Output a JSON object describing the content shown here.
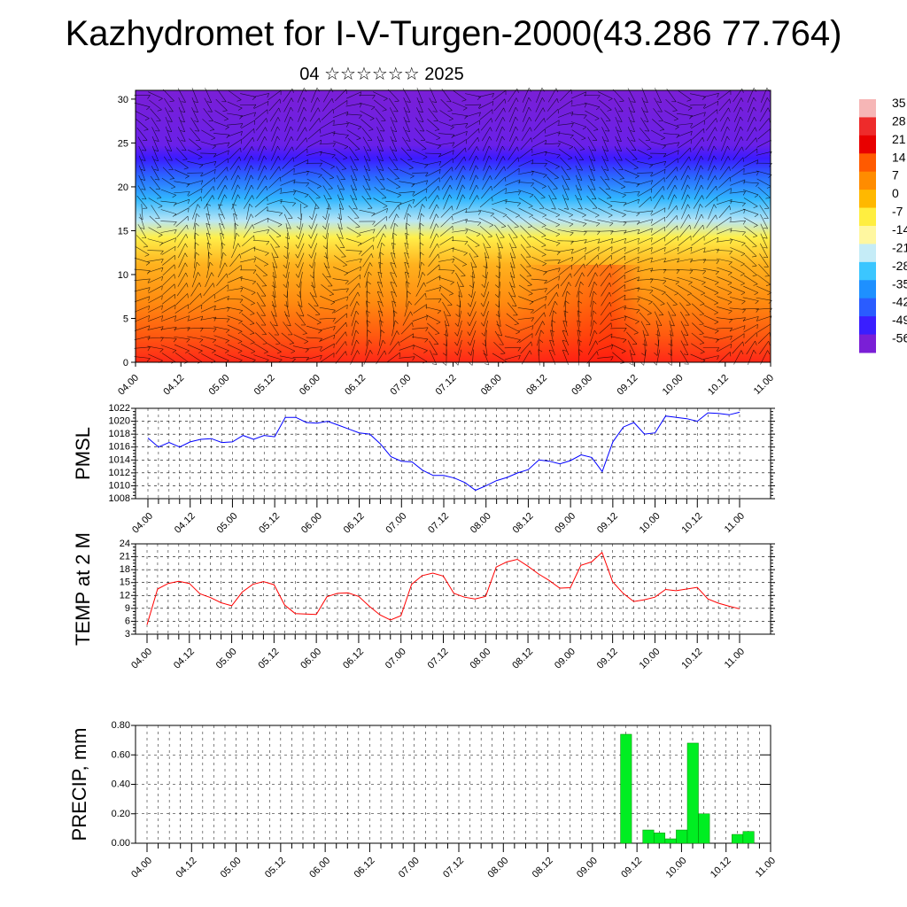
{
  "title": "Kazhydromet for I-V-Turgen-2000(43.286 77.764)",
  "subtitle": "04 ☆☆☆☆☆☆ 2025",
  "chart_data": [
    {
      "id": "profile",
      "type": "heatmap",
      "description_shown": "temperature cross-section with wind barbs",
      "y_ticks": [
        "0",
        "5",
        "10",
        "15",
        "20",
        "25",
        "30"
      ],
      "ylim": [
        0,
        31
      ],
      "x_ticks": [
        "04.00",
        "04.12",
        "05.00",
        "05.12",
        "06.00",
        "06.12",
        "07.00",
        "07.12",
        "08.00",
        "08.12",
        "09.00",
        "09.12",
        "10.00",
        "10.12",
        "11.00"
      ],
      "colorbar_ticks": [
        "35",
        "28",
        "21",
        "14",
        "7",
        "0",
        "-7",
        "-14",
        "-21",
        "-28",
        "-35",
        "-42",
        "-49",
        "-56"
      ],
      "colors": [
        "#7a1fd6",
        "#3b1bff",
        "#2a6bff",
        "#31b7ff",
        "#b9e6f5",
        "#fff04a",
        "#ffb21e",
        "#ff8a10",
        "#ff5a10",
        "#ff2818"
      ]
    },
    {
      "id": "pmsl",
      "type": "line",
      "ylabel": "PMSL",
      "ylim": [
        1008,
        1022
      ],
      "y_ticks": [
        "1008",
        "1010",
        "1012",
        "1014",
        "1016",
        "1018",
        "1020",
        "1022"
      ],
      "x_ticks": [
        "04.00",
        "04.12",
        "05.00",
        "05.12",
        "06.00",
        "06.12",
        "07.00",
        "07.12",
        "08.00",
        "08.12",
        "09.00",
        "09.12",
        "10.00",
        "10.12",
        "11.00"
      ],
      "color": "#0000ff",
      "values": [
        1017.4,
        1016.0,
        1016.7,
        1016.0,
        1016.8,
        1017.2,
        1017.3,
        1016.7,
        1016.8,
        1017.8,
        1017.2,
        1017.8,
        1017.6,
        1020.6,
        1020.6,
        1019.8,
        1019.7,
        1020.0,
        1019.4,
        1018.8,
        1018.2,
        1018.0,
        1016.5,
        1014.5,
        1013.8,
        1013.7,
        1012.4,
        1011.6,
        1011.6,
        1011.2,
        1010.5,
        1009.3,
        1010.0,
        1010.8,
        1011.3,
        1012.0,
        1012.5,
        1014.0,
        1013.8,
        1013.4,
        1013.9,
        1014.8,
        1014.4,
        1012.2,
        1016.8,
        1019.1,
        1019.8,
        1018.0,
        1018.2,
        1020.8,
        1020.6,
        1020.4,
        1020.0,
        1021.3,
        1021.2,
        1021.0,
        1021.4
      ]
    },
    {
      "id": "temp",
      "type": "line",
      "ylabel": "TEMP at 2 M",
      "ylim": [
        3,
        24
      ],
      "y_ticks": [
        "3",
        "6",
        "9",
        "12",
        "15",
        "18",
        "21",
        "24"
      ],
      "x_ticks": [
        "04.00",
        "04.12",
        "05.00",
        "05.12",
        "06.00",
        "06.12",
        "07.00",
        "07.12",
        "08.00",
        "08.12",
        "09.00",
        "09.12",
        "10.00",
        "10.12",
        "11.00"
      ],
      "color": "#ff0000",
      "values": [
        5.2,
        13.5,
        14.8,
        15.3,
        14.8,
        12.4,
        11.5,
        10.3,
        9.6,
        12.8,
        14.6,
        15.2,
        14.5,
        9.8,
        7.8,
        7.7,
        7.6,
        11.7,
        12.5,
        12.6,
        11.8,
        9.5,
        7.5,
        6.3,
        7.3,
        14.6,
        16.6,
        17.2,
        16.5,
        12.5,
        11.6,
        11.2,
        11.8,
        18.6,
        19.8,
        20.4,
        18.8,
        17.0,
        15.5,
        13.7,
        13.8,
        19.0,
        19.8,
        22.0,
        15.2,
        12.5,
        10.6,
        11.0,
        11.6,
        13.4,
        13.1,
        13.5,
        13.9,
        11.2,
        10.2,
        9.5,
        8.9
      ]
    },
    {
      "id": "precip",
      "type": "bar",
      "ylabel": "PRECIP, mm",
      "ylim": [
        0,
        0.8
      ],
      "y_ticks": [
        "0.00",
        "0.20",
        "0.40",
        "0.60",
        "0.80"
      ],
      "x_ticks": [
        "04.00",
        "04.12",
        "05.00",
        "05.12",
        "06.00",
        "06.12",
        "07.00",
        "07.12",
        "08.00",
        "08.12",
        "09.00",
        "09.12",
        "10.00",
        "10.12",
        "11.00"
      ],
      "color": "#00ee22",
      "values": [
        0,
        0,
        0,
        0,
        0,
        0,
        0,
        0,
        0,
        0,
        0,
        0,
        0,
        0,
        0,
        0,
        0,
        0,
        0,
        0,
        0,
        0,
        0,
        0,
        0,
        0,
        0,
        0,
        0,
        0,
        0,
        0,
        0,
        0,
        0,
        0,
        0,
        0,
        0,
        0,
        0,
        0,
        0,
        0.74,
        0,
        0.09,
        0.07,
        0.03,
        0.09,
        0.68,
        0.2,
        0,
        0,
        0.06,
        0.08,
        0,
        0
      ]
    }
  ]
}
